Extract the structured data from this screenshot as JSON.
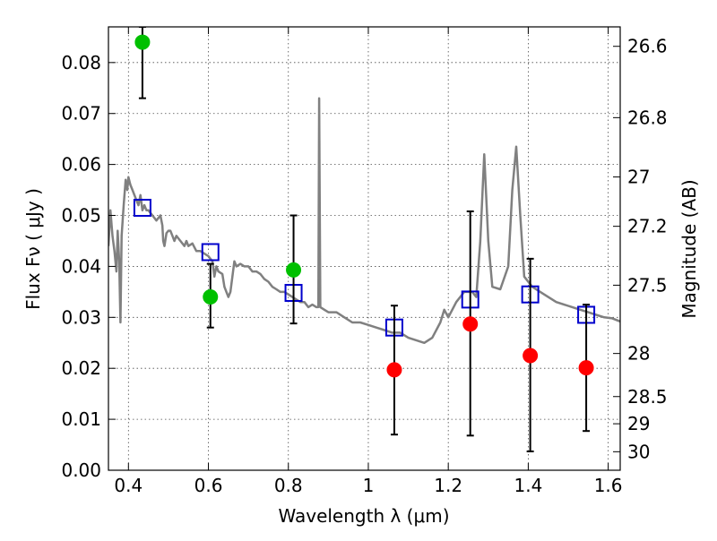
{
  "chart_data": {
    "type": "scatter",
    "xlabel": "Wavelength  λ (μm)",
    "ylabel": "Flux  Fν  ( μJy )",
    "y2label": "Magnitude (AB)",
    "xlim": [
      0.35,
      1.63
    ],
    "ylim": [
      0.0,
      0.087
    ],
    "grid": true,
    "x_ticks": [
      0.4,
      0.6,
      0.8,
      1.0,
      1.2,
      1.4,
      1.6
    ],
    "x_tick_labels": [
      "0.4",
      "0.6",
      "0.8",
      "1",
      "1.2",
      "1.4",
      "1.6"
    ],
    "y_ticks": [
      0.0,
      0.01,
      0.02,
      0.03,
      0.04,
      0.05,
      0.06,
      0.07,
      0.08
    ],
    "y_tick_labels": [
      "0.00",
      "0.01",
      "0.02",
      "0.03",
      "0.04",
      "0.05",
      "0.06",
      "0.07",
      "0.08"
    ],
    "y2_ticks": [
      {
        "label": "26.6",
        "mag": 26.6
      },
      {
        "label": "26.8",
        "mag": 26.8
      },
      {
        "label": "27",
        "mag": 27.0
      },
      {
        "label": "27.2",
        "mag": 27.2
      },
      {
        "label": "27.5",
        "mag": 27.5
      },
      {
        "label": "28",
        "mag": 28.0
      },
      {
        "label": "28.5",
        "mag": 28.5
      },
      {
        "label": "29",
        "mag": 29.0
      },
      {
        "label": "30",
        "mag": 30.0
      }
    ],
    "series": [
      {
        "kind": "line",
        "color": "#808080",
        "points": [
          [
            0.35,
            0.044
          ],
          [
            0.355,
            0.051
          ],
          [
            0.36,
            0.046
          ],
          [
            0.365,
            0.043
          ],
          [
            0.37,
            0.039
          ],
          [
            0.373,
            0.047
          ],
          [
            0.377,
            0.041
          ],
          [
            0.38,
            0.029
          ],
          [
            0.383,
            0.046
          ],
          [
            0.388,
            0.052
          ],
          [
            0.393,
            0.057
          ],
          [
            0.397,
            0.055
          ],
          [
            0.4,
            0.0575
          ],
          [
            0.405,
            0.056
          ],
          [
            0.41,
            0.055
          ],
          [
            0.415,
            0.054
          ],
          [
            0.42,
            0.053
          ],
          [
            0.425,
            0.052
          ],
          [
            0.43,
            0.054
          ],
          [
            0.435,
            0.051
          ],
          [
            0.44,
            0.052
          ],
          [
            0.445,
            0.051
          ],
          [
            0.45,
            0.051
          ],
          [
            0.46,
            0.05
          ],
          [
            0.47,
            0.049
          ],
          [
            0.48,
            0.05
          ],
          [
            0.485,
            0.048
          ],
          [
            0.487,
            0.045
          ],
          [
            0.49,
            0.044
          ],
          [
            0.495,
            0.0465
          ],
          [
            0.5,
            0.047
          ],
          [
            0.505,
            0.047
          ],
          [
            0.51,
            0.046
          ],
          [
            0.515,
            0.045
          ],
          [
            0.52,
            0.046
          ],
          [
            0.53,
            0.045
          ],
          [
            0.54,
            0.044
          ],
          [
            0.545,
            0.045
          ],
          [
            0.55,
            0.044
          ],
          [
            0.56,
            0.0445
          ],
          [
            0.57,
            0.043
          ],
          [
            0.58,
            0.043
          ],
          [
            0.59,
            0.0425
          ],
          [
            0.6,
            0.042
          ],
          [
            0.61,
            0.041
          ],
          [
            0.615,
            0.038
          ],
          [
            0.62,
            0.04
          ],
          [
            0.625,
            0.039
          ],
          [
            0.635,
            0.0385
          ],
          [
            0.64,
            0.036
          ],
          [
            0.645,
            0.035
          ],
          [
            0.65,
            0.034
          ],
          [
            0.655,
            0.035
          ],
          [
            0.66,
            0.038
          ],
          [
            0.665,
            0.041
          ],
          [
            0.67,
            0.04
          ],
          [
            0.68,
            0.0405
          ],
          [
            0.69,
            0.04
          ],
          [
            0.7,
            0.04
          ],
          [
            0.71,
            0.039
          ],
          [
            0.72,
            0.039
          ],
          [
            0.73,
            0.0385
          ],
          [
            0.74,
            0.0375
          ],
          [
            0.75,
            0.037
          ],
          [
            0.76,
            0.036
          ],
          [
            0.77,
            0.0355
          ],
          [
            0.78,
            0.035
          ],
          [
            0.79,
            0.035
          ],
          [
            0.8,
            0.0345
          ],
          [
            0.81,
            0.034
          ],
          [
            0.82,
            0.0335
          ],
          [
            0.83,
            0.033
          ],
          [
            0.84,
            0.033
          ],
          [
            0.85,
            0.032
          ],
          [
            0.86,
            0.0325
          ],
          [
            0.87,
            0.032
          ],
          [
            0.875,
            0.032
          ],
          [
            0.877,
            0.073
          ],
          [
            0.88,
            0.032
          ],
          [
            0.89,
            0.0315
          ],
          [
            0.9,
            0.031
          ],
          [
            0.92,
            0.031
          ],
          [
            0.94,
            0.03
          ],
          [
            0.96,
            0.029
          ],
          [
            0.98,
            0.029
          ],
          [
            1.0,
            0.0285
          ],
          [
            1.02,
            0.028
          ],
          [
            1.04,
            0.0275
          ],
          [
            1.06,
            0.027
          ],
          [
            1.08,
            0.027
          ],
          [
            1.1,
            0.026
          ],
          [
            1.12,
            0.0255
          ],
          [
            1.14,
            0.025
          ],
          [
            1.16,
            0.026
          ],
          [
            1.18,
            0.029
          ],
          [
            1.19,
            0.0315
          ],
          [
            1.2,
            0.03
          ],
          [
            1.22,
            0.033
          ],
          [
            1.24,
            0.035
          ],
          [
            1.26,
            0.035
          ],
          [
            1.27,
            0.034
          ],
          [
            1.28,
            0.045
          ],
          [
            1.29,
            0.062
          ],
          [
            1.3,
            0.045
          ],
          [
            1.31,
            0.036
          ],
          [
            1.33,
            0.0355
          ],
          [
            1.35,
            0.04
          ],
          [
            1.36,
            0.055
          ],
          [
            1.37,
            0.0635
          ],
          [
            1.38,
            0.05
          ],
          [
            1.39,
            0.038
          ],
          [
            1.41,
            0.036
          ],
          [
            1.43,
            0.035
          ],
          [
            1.45,
            0.034
          ],
          [
            1.47,
            0.033
          ],
          [
            1.49,
            0.0325
          ],
          [
            1.51,
            0.032
          ],
          [
            1.53,
            0.0315
          ],
          [
            1.55,
            0.031
          ],
          [
            1.57,
            0.0305
          ],
          [
            1.59,
            0.03
          ],
          [
            1.61,
            0.0298
          ],
          [
            1.63,
            0.0292
          ]
        ]
      },
      {
        "kind": "squares",
        "color": "#0000cc",
        "x": [
          0.435,
          0.605,
          0.813,
          1.065,
          1.255,
          1.405,
          1.545
        ],
        "y": [
          0.0515,
          0.0428,
          0.0348,
          0.028,
          0.0335,
          0.0345,
          0.0305
        ]
      },
      {
        "kind": "points",
        "color": "#00c000",
        "x": [
          0.435,
          0.605,
          0.813
        ],
        "y": [
          0.084,
          0.034,
          0.0393
        ],
        "yerr_low": [
          0.073,
          0.028,
          0.0288
        ],
        "yerr_high": [
          0.087,
          0.0405,
          0.05
        ]
      },
      {
        "kind": "points",
        "color": "#ff0000",
        "x": [
          1.065,
          1.255,
          1.405,
          1.545
        ],
        "y": [
          0.0197,
          0.0287,
          0.0225,
          0.0201
        ],
        "yerr_low": [
          0.007,
          0.0068,
          0.0037,
          0.0077
        ],
        "yerr_high": [
          0.0323,
          0.0508,
          0.0415,
          0.0325
        ]
      }
    ]
  }
}
